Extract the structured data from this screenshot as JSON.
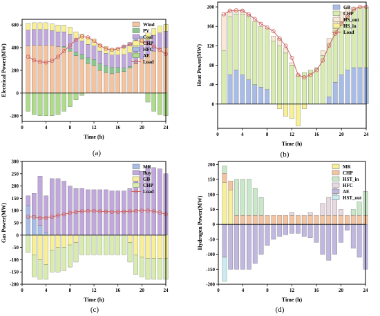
{
  "chart_data": [
    {
      "panel_tag": "(a)",
      "type": "bar",
      "stacked": true,
      "xlabel": "Time (h)",
      "ylabel": "Electrical Power(MW)",
      "xlim": [
        0,
        24
      ],
      "ylim": [
        -250,
        650
      ],
      "xticks": [
        0,
        4,
        8,
        12,
        16,
        20,
        24
      ],
      "yticks": [
        -200,
        0,
        200,
        400,
        600
      ],
      "legend_position": "top-right",
      "x": [
        1,
        2,
        3,
        4,
        5,
        6,
        7,
        8,
        9,
        10,
        11,
        12,
        13,
        14,
        15,
        16,
        17,
        18,
        19,
        20,
        21,
        22,
        23,
        24
      ],
      "series": [
        {
          "name": "Wind",
          "color": "#f4c4a0",
          "values": [
            415,
            420,
            420,
            420,
            420,
            410,
            400,
            370,
            330,
            300,
            260,
            240,
            200,
            180,
            170,
            180,
            190,
            220,
            260,
            300,
            340,
            370,
            390,
            405
          ]
        },
        {
          "name": "PV",
          "color": "#8cc68e",
          "values": [
            0,
            0,
            0,
            0,
            0,
            0,
            10,
            20,
            30,
            40,
            50,
            55,
            60,
            60,
            55,
            45,
            30,
            15,
            5,
            0,
            0,
            0,
            0,
            0
          ]
        },
        {
          "name": "Coal",
          "color": "#c0a8dc",
          "values": [
            140,
            140,
            140,
            140,
            130,
            130,
            130,
            130,
            120,
            120,
            120,
            120,
            110,
            110,
            110,
            110,
            120,
            120,
            120,
            120,
            130,
            140,
            140,
            140
          ]
        },
        {
          "name": "CHP",
          "color": "#f8f098",
          "values": [
            60,
            60,
            60,
            60,
            60,
            60,
            60,
            60,
            60,
            60,
            60,
            60,
            60,
            60,
            60,
            60,
            60,
            60,
            60,
            60,
            60,
            60,
            60,
            60
          ]
        },
        {
          "name": "HFC",
          "color": "#a8bce8",
          "values": [
            0,
            0,
            0,
            0,
            0,
            0,
            0,
            0,
            0,
            0,
            0,
            0,
            0,
            0,
            0,
            0,
            20,
            30,
            30,
            20,
            0,
            0,
            0,
            0
          ]
        },
        {
          "name": "AE",
          "color": "#aedc8c",
          "values": [
            -160,
            -190,
            -200,
            -200,
            -200,
            -190,
            -160,
            -120,
            -60,
            -20,
            0,
            0,
            0,
            0,
            0,
            0,
            0,
            0,
            0,
            0,
            -80,
            -160,
            -190,
            -200
          ]
        }
      ],
      "line": {
        "name": "Load",
        "color": "#d06060",
        "values": [
          320,
          290,
          275,
          270,
          285,
          320,
          370,
          420,
          470,
          500,
          490,
          460,
          420,
          390,
          380,
          390,
          410,
          430,
          450,
          460,
          440,
          410,
          380,
          345
        ]
      }
    },
    {
      "panel_tag": "(b)",
      "type": "bar",
      "stacked": true,
      "xlabel": "Time (h)",
      "ylabel": "Heat Power(MW)",
      "xlim": [
        0,
        24
      ],
      "ylim": [
        -50,
        210
      ],
      "xticks": [
        0,
        4,
        8,
        12,
        16,
        20,
        24
      ],
      "yticks": [
        0,
        40,
        80,
        120,
        160,
        200
      ],
      "legend_position": "top-right",
      "x": [
        1,
        2,
        3,
        4,
        5,
        6,
        7,
        8,
        9,
        10,
        11,
        12,
        13,
        14,
        15,
        16,
        17,
        18,
        19,
        20,
        21,
        22,
        23,
        24
      ],
      "series": [
        {
          "name": "GB",
          "color": "#a8bce8",
          "values": [
            0,
            60,
            70,
            60,
            50,
            40,
            35,
            30,
            0,
            0,
            0,
            0,
            0,
            0,
            0,
            0,
            0,
            15,
            45,
            60,
            70,
            75,
            75,
            75
          ]
        },
        {
          "name": "CHP",
          "color": "#d8ecb0",
          "values": [
            110,
            120,
            115,
            125,
            130,
            130,
            125,
            125,
            130,
            120,
            105,
            80,
            60,
            65,
            70,
            75,
            100,
            110,
            110,
            110,
            110,
            120,
            125,
            125
          ]
        },
        {
          "name": "HS_out",
          "color": "#f8e8d4",
          "values": [
            75,
            12,
            8,
            8,
            5,
            0,
            0,
            0,
            10,
            15,
            10,
            5,
            0,
            0,
            0,
            0,
            10,
            10,
            20,
            20,
            20,
            5,
            0,
            0
          ]
        },
        {
          "name": "HS_in",
          "color": "#f8f098",
          "values": [
            0,
            0,
            0,
            0,
            0,
            0,
            0,
            0,
            0,
            -10,
            -25,
            -30,
            -45,
            -10,
            0,
            0,
            0,
            0,
            0,
            0,
            0,
            0,
            0,
            0
          ]
        }
      ],
      "line": {
        "name": "Load",
        "color": "#d06060",
        "values": [
          185,
          192,
          193,
          192,
          185,
          175,
          165,
          158,
          150,
          135,
          120,
          95,
          60,
          55,
          60,
          70,
          90,
          120,
          145,
          165,
          180,
          195,
          200,
          200
        ]
      }
    },
    {
      "panel_tag": "(c)",
      "type": "bar",
      "stacked": true,
      "xlabel": "Time (h)",
      "ylabel": "Gas Power(MW)",
      "xlim": [
        0,
        24
      ],
      "ylim": [
        -200,
        300
      ],
      "xticks": [
        0,
        4,
        8,
        12,
        16,
        20,
        24
      ],
      "yticks": [
        -200,
        -150,
        -100,
        -50,
        0,
        50,
        100,
        150,
        200,
        250,
        300
      ],
      "legend_position": "top-right",
      "x": [
        1,
        2,
        3,
        4,
        5,
        6,
        7,
        8,
        9,
        10,
        11,
        12,
        13,
        14,
        15,
        16,
        17,
        18,
        19,
        20,
        21,
        22,
        23,
        24
      ],
      "series": [
        {
          "name": "MR",
          "color": "#a8bce8",
          "values": [
            120,
            80,
            40,
            10,
            0,
            0,
            0,
            0,
            0,
            0,
            0,
            0,
            0,
            0,
            0,
            0,
            0,
            0,
            0,
            0,
            0,
            0,
            0,
            0
          ]
        },
        {
          "name": "Buy",
          "color": "#c0a8dc",
          "values": [
            40,
            90,
            200,
            150,
            230,
            230,
            220,
            200,
            190,
            190,
            185,
            185,
            185,
            185,
            180,
            180,
            180,
            190,
            230,
            260,
            280,
            275,
            270,
            250
          ]
        },
        {
          "name": "GB",
          "color": "#f8f098",
          "values": [
            0,
            -80,
            -100,
            -120,
            -60,
            -50,
            -50,
            -40,
            -30,
            0,
            0,
            0,
            0,
            0,
            0,
            0,
            0,
            -30,
            -80,
            -90,
            -95,
            -95,
            -95,
            -95
          ]
        },
        {
          "name": "CHP",
          "color": "#d8ecb0",
          "values": [
            -70,
            -90,
            -80,
            -60,
            -90,
            -100,
            -95,
            -90,
            -80,
            -80,
            -80,
            -80,
            -80,
            -80,
            -80,
            -80,
            -80,
            -80,
            -80,
            -80,
            -85,
            -85,
            -85,
            -85
          ]
        }
      ],
      "line": {
        "name": "Load",
        "color": "#d06060",
        "values": [
          75,
          73,
          70,
          70,
          75,
          80,
          85,
          90,
          95,
          97,
          98,
          98,
          97,
          96,
          95,
          95,
          96,
          97,
          98,
          100,
          100,
          97,
          92,
          85
        ]
      }
    },
    {
      "panel_tag": "(d)",
      "type": "bar",
      "stacked": true,
      "xlabel": "Time (h)",
      "ylabel": "Hydrogen Power(MW)",
      "xlim": [
        0,
        24
      ],
      "ylim": [
        -200,
        210
      ],
      "xticks": [
        0,
        4,
        8,
        12,
        16,
        20,
        24
      ],
      "yticks": [
        -200,
        -150,
        -100,
        -50,
        0,
        50,
        100,
        150,
        200
      ],
      "legend_position": "top-right",
      "x": [
        1,
        2,
        3,
        4,
        5,
        6,
        7,
        8,
        9,
        10,
        11,
        12,
        13,
        14,
        15,
        16,
        17,
        18,
        19,
        20,
        21,
        22,
        23,
        24
      ],
      "series": [
        {
          "name": "MR",
          "color": "#f8f098",
          "values": [
            140,
            115,
            0,
            0,
            0,
            0,
            0,
            0,
            0,
            0,
            0,
            0,
            0,
            0,
            0,
            0,
            0,
            0,
            0,
            0,
            0,
            0,
            0,
            0
          ]
        },
        {
          "name": "CHP",
          "color": "#f4c4a0",
          "values": [
            30,
            30,
            30,
            30,
            30,
            30,
            30,
            30,
            30,
            30,
            30,
            30,
            30,
            30,
            30,
            30,
            30,
            30,
            30,
            30,
            30,
            30,
            30,
            30
          ]
        },
        {
          "name": "HST_in",
          "color": "#c8e8c8",
          "values": [
            25,
            0,
            120,
            120,
            120,
            90,
            60,
            0,
            0,
            0,
            0,
            0,
            0,
            0,
            0,
            0,
            0,
            0,
            0,
            0,
            0,
            20,
            45,
            80
          ]
        },
        {
          "name": "HFC",
          "color": "#e8d8e0",
          "values": [
            0,
            0,
            0,
            0,
            0,
            0,
            0,
            0,
            0,
            0,
            0,
            10,
            0,
            0,
            10,
            0,
            40,
            60,
            90,
            20,
            0,
            0,
            0,
            0
          ]
        },
        {
          "name": "AE",
          "color": "#c0b8e0",
          "values": [
            -110,
            -150,
            -150,
            -150,
            -150,
            -130,
            -100,
            -70,
            -50,
            -40,
            -35,
            -30,
            -30,
            -40,
            -45,
            -60,
            -100,
            -120,
            -100,
            -60,
            -20,
            -80,
            -110,
            -150
          ]
        },
        {
          "name": "HST_out",
          "color": "#c8ecf0",
          "values": [
            -80,
            0,
            0,
            0,
            0,
            0,
            0,
            0,
            0,
            0,
            0,
            0,
            0,
            0,
            0,
            0,
            0,
            0,
            0,
            0,
            0,
            0,
            0,
            0
          ]
        }
      ]
    }
  ]
}
